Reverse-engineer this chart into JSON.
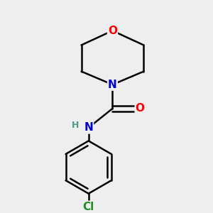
{
  "background_color": "#eeeeee",
  "bond_color": "#000000",
  "atom_colors": {
    "O": "#ff0000",
    "N": "#0000cd",
    "Cl": "#228b22",
    "H": "#4a9a8a"
  },
  "figsize": [
    3.0,
    3.0
  ],
  "dpi": 100
}
